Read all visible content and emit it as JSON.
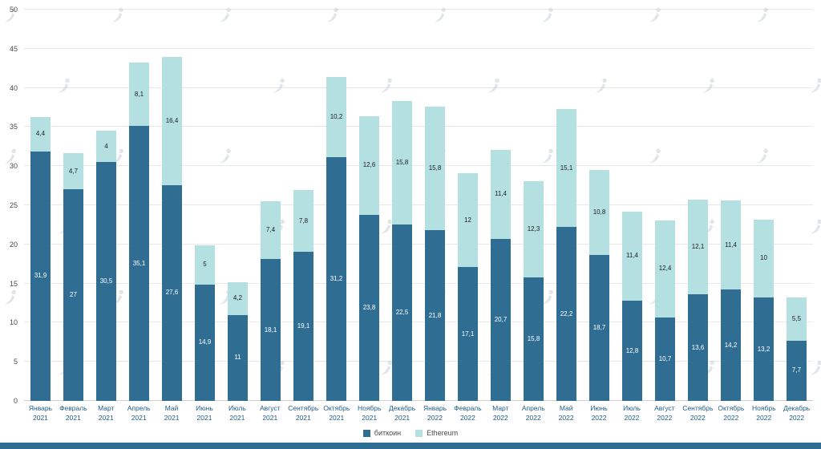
{
  "chart_data": {
    "type": "bar",
    "stacked": true,
    "title": "",
    "xlabel": "",
    "ylabel": "",
    "ylim": [
      0,
      50
    ],
    "yticks": [
      0,
      5,
      10,
      15,
      20,
      25,
      30,
      35,
      40,
      45,
      50
    ],
    "grid": true,
    "legend_position": "bottom",
    "categories": [
      "Январь 2021",
      "Февраль 2021",
      "Март 2021",
      "Апрель 2021",
      "Май 2021",
      "Июнь 2021",
      "Июль 2021",
      "Август 2021",
      "Сентябрь 2021",
      "Октябрь 2021",
      "Ноябрь 2021",
      "Декабрь 2021",
      "Январь 2022",
      "Февраль 2022",
      "Март 2022",
      "Апрель 2022",
      "Май 2022",
      "Июнь 2022",
      "Июль 2022",
      "Август 2022",
      "Сентябрь 2022",
      "Октябрь 2022",
      "Ноябрь 2022",
      "Декабрь 2022"
    ],
    "series": [
      {
        "name": "биткоин",
        "color": "#2f6d93",
        "values": [
          31.9,
          27,
          30.5,
          35.1,
          27.6,
          14.9,
          11,
          18.1,
          19.1,
          31.2,
          23.8,
          22.5,
          21.8,
          17.1,
          20.7,
          15.8,
          22.2,
          18.7,
          12.8,
          10.7,
          13.6,
          14.2,
          13.2,
          7.7
        ],
        "labels": [
          "31,9",
          "27",
          "30,5",
          "35,1",
          "27,6",
          "14,9",
          "11",
          "18,1",
          "19,1",
          "31,2",
          "23,8",
          "22,5",
          "21,8",
          "17,1",
          "20,7",
          "15,8",
          "22,2",
          "18,7",
          "12,8",
          "10,7",
          "13,6",
          "14,2",
          "13,2",
          "7,7"
        ]
      },
      {
        "name": "Ethereum",
        "color": "#b5e0e1",
        "values": [
          4.4,
          4.7,
          4,
          8.1,
          16.4,
          5,
          4.2,
          7.4,
          7.8,
          10.2,
          12.6,
          15.8,
          15.8,
          12,
          11.4,
          12.3,
          15.1,
          10.8,
          11.4,
          12.4,
          12.1,
          11.4,
          10,
          5.5
        ],
        "labels": [
          "4,4",
          "4,7",
          "4",
          "8,1",
          "16,4",
          "5",
          "4,2",
          "7,4",
          "7,8",
          "10,2",
          "12,6",
          "15,8",
          "15,8",
          "12",
          "11,4",
          "12,3",
          "15,1",
          "10,8",
          "11,4",
          "12,4",
          "12,1",
          "11,4",
          "10",
          "5,5"
        ]
      }
    ]
  },
  "colors": {
    "bitcoin_bar": "#2f6d93",
    "ethereum_bar": "#b5e0e1",
    "footer_bar": "#2f6d93",
    "x_label_text": "#1f5c85"
  }
}
